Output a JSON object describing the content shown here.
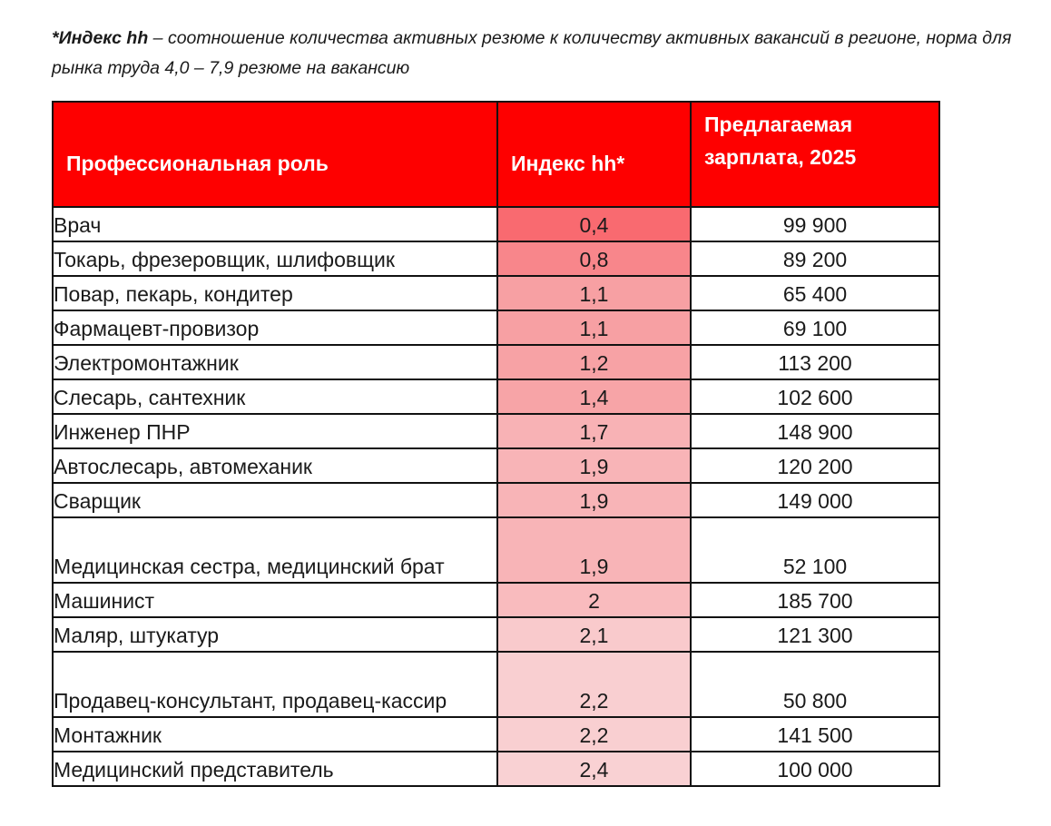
{
  "note": {
    "bold_term": "*Индекс hh",
    "text": " – соотношение количества активных резюме к количеству активных вакансий в регионе, норма для рынка труда 4,0 – 7,9 резюме на вакансию"
  },
  "table": {
    "headers": {
      "role": "Профессиональная роль",
      "index": "Индекс hh*",
      "salary_line1": "Предлагаемая",
      "salary_line2": "зарплата, 2025"
    },
    "header_color": "#fe0000",
    "rows": [
      {
        "role": "Врач",
        "index": "0,4",
        "salary": "99 900",
        "color": "#f96a70"
      },
      {
        "role": "Токарь, фрезеровщик, шлифовщик",
        "index": "0,8",
        "salary": "89 200",
        "color": "#f8868b"
      },
      {
        "role": "Повар, пекарь, кондитер",
        "index": "1,1",
        "salary": "65 400",
        "color": "#f7a0a3"
      },
      {
        "role": "Фармацевт-провизор",
        "index": "1,1",
        "salary": "69 100",
        "color": "#f7a0a3"
      },
      {
        "role": "Электромонтажник",
        "index": "1,2",
        "salary": "113 200",
        "color": "#f7a2a5"
      },
      {
        "role": "Слесарь, сантехник",
        "index": "1,4",
        "salary": "102 600",
        "color": "#f7a4a7"
      },
      {
        "role": "Инженер ПНР",
        "index": "1,7",
        "salary": "148 900",
        "color": "#f8b2b5"
      },
      {
        "role": "Автослесарь, автомеханик",
        "index": "1,9",
        "salary": "120 200",
        "color": "#f8b4b7"
      },
      {
        "role": "Сварщик",
        "index": "1,9",
        "salary": "149 000",
        "color": "#f8b4b7"
      },
      {
        "role": "Медицинская сестра, медицинский брат",
        "index": "1,9",
        "salary": "52 100",
        "color": "#f8b4b7",
        "two_line": true
      },
      {
        "role": "Машинист",
        "index": "2",
        "salary": "185 700",
        "color": "#f9bbbe"
      },
      {
        "role": "Маляр, штукатур",
        "index": "2,1",
        "salary": "121 300",
        "color": "#f9cacc"
      },
      {
        "role": "Продавец-консультант, продавец-кассир",
        "index": "2,2",
        "salary": "50 800",
        "color": "#f9cfd1",
        "two_line": true
      },
      {
        "role": "Монтажник",
        "index": "2,2",
        "salary": "141 500",
        "color": "#f9cfd1"
      },
      {
        "role": "Медицинский представитель",
        "index": "2,4",
        "salary": "100 000",
        "color": "#f9d1d3"
      }
    ]
  }
}
